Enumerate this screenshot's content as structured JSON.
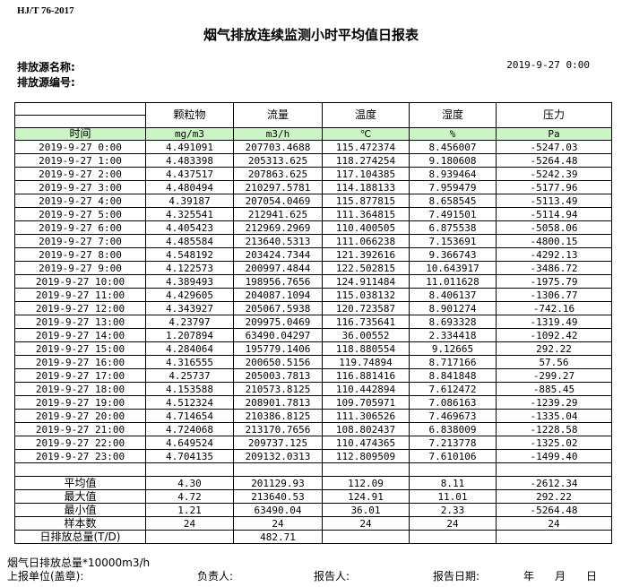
{
  "standard": "HJ/T  76-2017",
  "title": "烟气排放连续监测小时平均值日报表",
  "source_name_label": "排放源名称:",
  "source_id_label": "排放源编号:",
  "report_datetime": "2019-9-27 0:00",
  "table": {
    "headers": [
      "颗粒物",
      "流量",
      "温度",
      "湿度",
      "压力"
    ],
    "time_label": "时间",
    "units": [
      "mg/m3",
      "m3/h",
      "℃",
      "%",
      "Pa"
    ],
    "rows": [
      [
        "2019-9-27 0:00",
        "4.491091",
        "207703.4688",
        "115.472374",
        "8.456007",
        "-5247.03"
      ],
      [
        "2019-9-27 1:00",
        "4.483398",
        "205313.625",
        "118.274254",
        "9.180608",
        "-5264.48"
      ],
      [
        "2019-9-27 2:00",
        "4.437517",
        "207863.625",
        "117.104385",
        "8.939464",
        "-5242.39"
      ],
      [
        "2019-9-27 3:00",
        "4.480494",
        "210297.5781",
        "114.188133",
        "7.959479",
        "-5177.96"
      ],
      [
        "2019-9-27 4:00",
        "4.39187",
        "207054.0469",
        "115.877815",
        "8.658545",
        "-5113.49"
      ],
      [
        "2019-9-27 5:00",
        "4.325541",
        "212941.625",
        "111.364815",
        "7.491501",
        "-5114.94"
      ],
      [
        "2019-9-27 6:00",
        "4.405423",
        "212969.2969",
        "110.400505",
        "6.875538",
        "-5058.06"
      ],
      [
        "2019-9-27 7:00",
        "4.485584",
        "213640.5313",
        "111.066238",
        "7.153691",
        "-4800.15"
      ],
      [
        "2019-9-27 8:00",
        "4.548192",
        "203424.7344",
        "121.392616",
        "9.366743",
        "-4292.13"
      ],
      [
        "2019-9-27 9:00",
        "4.122573",
        "200997.4844",
        "122.502815",
        "10.643917",
        "-3486.72"
      ],
      [
        "2019-9-27 10:00",
        "4.389493",
        "198956.7656",
        "124.911484",
        "11.011628",
        "-1975.79"
      ],
      [
        "2019-9-27 11:00",
        "4.429605",
        "204087.1094",
        "115.038132",
        "8.406137",
        "-1306.77"
      ],
      [
        "2019-9-27 12:00",
        "4.343927",
        "205067.5938",
        "120.723587",
        "8.901274",
        "-742.16"
      ],
      [
        "2019-9-27 13:00",
        "4.23797",
        "209975.0469",
        "116.735641",
        "8.693328",
        "-1319.49"
      ],
      [
        "2019-9-27 14:00",
        "1.207894",
        "63490.04297",
        "36.00552",
        "2.334418",
        "-1092.42"
      ],
      [
        "2019-9-27 15:00",
        "4.284064",
        "195779.1406",
        "118.880554",
        "9.12665",
        "292.22"
      ],
      [
        "2019-9-27 16:00",
        "4.316555",
        "200650.5156",
        "119.74894",
        "8.717166",
        "57.56"
      ],
      [
        "2019-9-27 17:00",
        "4.25737",
        "205003.7813",
        "116.881416",
        "8.841848",
        "-299.27"
      ],
      [
        "2019-9-27 18:00",
        "4.153588",
        "210573.8125",
        "110.442894",
        "7.612472",
        "-885.45"
      ],
      [
        "2019-9-27 19:00",
        "4.512324",
        "208901.7813",
        "109.705971",
        "7.086163",
        "-1239.29"
      ],
      [
        "2019-9-27 20:00",
        "4.714654",
        "210386.8125",
        "111.306526",
        "7.469673",
        "-1335.04"
      ],
      [
        "2019-9-27 21:00",
        "4.724068",
        "213170.7656",
        "108.802437",
        "6.838009",
        "-1228.58"
      ],
      [
        "2019-9-27 22:00",
        "4.649524",
        "209737.125",
        "110.474365",
        "7.213778",
        "-1325.02"
      ],
      [
        "2019-9-27 23:00",
        "4.704135",
        "209132.0313",
        "112.809509",
        "7.610106",
        "-1499.40"
      ]
    ],
    "stats": [
      [
        "平均值",
        "4.30",
        "201129.93",
        "112.09",
        "8.11",
        "-2612.34"
      ],
      [
        "最大值",
        "4.72",
        "213640.53",
        "124.91",
        "11.01",
        "292.22"
      ],
      [
        "最小值",
        "1.21",
        "63490.04",
        "36.01",
        "2.33",
        "-5264.48"
      ],
      [
        "样本数",
        "24",
        "24",
        "24",
        "24",
        "24"
      ],
      [
        "日排放总量(T/D)",
        "",
        "482.71",
        "",
        "",
        ""
      ]
    ]
  },
  "footer": {
    "note": "烟气日排放总量*10000m3/h",
    "unit_label": "上报单位(盖章):",
    "person_label": "负责人:",
    "reporter_label": "报告人:",
    "date_label": "报告日期:",
    "year": "年",
    "month": "月",
    "day": "日"
  }
}
